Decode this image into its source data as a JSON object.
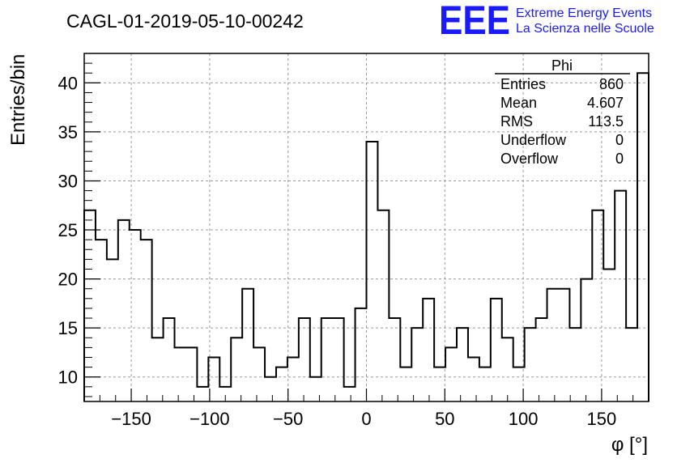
{
  "header": {
    "title": "CAGL-01-2019-05-10-00242",
    "logo_text": "EEE",
    "logo_line1": "Extreme Energy Events",
    "logo_line2": "La Scienza nelle Scuole",
    "logo_color": "#1a1aff"
  },
  "stats_box": {
    "title": "Phi",
    "rows": [
      {
        "label": "Entries",
        "value": "860"
      },
      {
        "label": "Mean",
        "value": "4.607"
      },
      {
        "label": "RMS",
        "value": "113.5"
      },
      {
        "label": "Underflow",
        "value": "0"
      },
      {
        "label": "Overflow",
        "value": "0"
      }
    ]
  },
  "chart_data": {
    "type": "bar",
    "histogram": true,
    "xlabel": "φ [°]",
    "ylabel": "Entries/bin",
    "xlim": [
      -180,
      180
    ],
    "ylim": [
      7.5,
      43
    ],
    "bin_width": 7.2,
    "x_ticks": [
      -150,
      -100,
      -50,
      0,
      50,
      100,
      150
    ],
    "x_tick_labels": [
      "−150",
      "−100",
      "−50",
      "0",
      "50",
      "100",
      "150"
    ],
    "y_ticks": [
      10,
      15,
      20,
      25,
      30,
      35,
      40
    ],
    "y_tick_labels": [
      "10",
      "15",
      "20",
      "25",
      "30",
      "35",
      "40"
    ],
    "grid": true,
    "values": [
      27,
      24,
      22,
      26,
      25,
      24,
      14,
      16,
      13,
      13,
      9,
      12,
      9,
      14,
      19,
      13,
      10,
      11,
      12,
      16,
      10,
      16,
      16,
      9,
      17,
      34,
      27,
      16,
      11,
      15,
      18,
      11,
      13,
      15,
      12,
      11,
      18,
      14,
      11,
      15,
      16,
      19,
      19,
      15,
      20,
      27,
      21,
      29,
      15,
      41
    ]
  }
}
